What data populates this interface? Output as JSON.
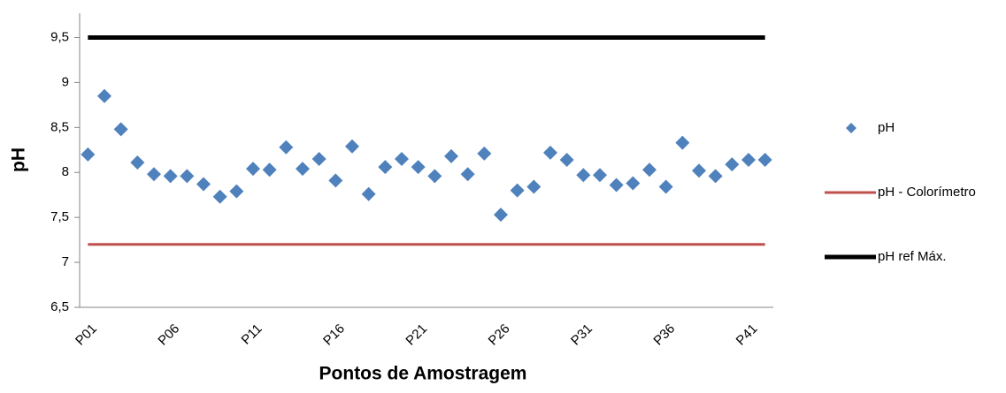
{
  "chart_data": {
    "type": "scatter-line",
    "x_label": "Pontos de Amostragem",
    "y_label": "pH",
    "categories": [
      "P01",
      null,
      null,
      null,
      null,
      "P06",
      null,
      null,
      null,
      null,
      "P11",
      null,
      null,
      null,
      null,
      "P16",
      null,
      null,
      null,
      null,
      "P21",
      null,
      null,
      null,
      null,
      "P26",
      null,
      null,
      null,
      null,
      "P31",
      null,
      null,
      null,
      null,
      "P36",
      null,
      null,
      null,
      null,
      "P41",
      null
    ],
    "series": [
      {
        "name": "pH",
        "color": "#4f81bd",
        "mark": "diamond",
        "values": [
          8.2,
          8.85,
          8.48,
          8.11,
          7.98,
          7.96,
          7.96,
          7.87,
          7.73,
          7.79,
          8.04,
          8.03,
          8.28,
          8.04,
          8.15,
          7.91,
          8.29,
          7.76,
          8.06,
          8.15,
          8.06,
          7.96,
          8.18,
          7.98,
          8.21,
          7.53,
          7.8,
          7.84,
          8.22,
          8.14,
          7.97,
          7.97,
          7.86,
          7.88,
          8.03,
          7.84,
          8.33,
          8.02,
          7.96,
          8.09,
          8.14,
          8.14
        ]
      },
      {
        "name": "pH - Colorímetro",
        "color": "#c0504d",
        "mark": "line",
        "width": 3,
        "values": [
          7.2,
          7.2,
          7.2,
          7.2,
          7.2,
          7.2,
          7.2,
          7.2,
          7.2,
          7.2,
          7.2,
          7.2,
          7.2,
          7.2,
          7.2,
          7.2,
          7.2,
          7.2,
          7.2,
          7.2,
          7.2,
          7.2,
          7.2,
          7.2,
          7.2,
          7.2,
          7.2,
          7.2,
          7.2,
          7.2,
          7.2,
          7.2,
          7.2,
          7.2,
          7.2,
          7.2,
          7.2,
          7.2,
          7.2,
          7.2,
          7.2,
          7.2
        ]
      },
      {
        "name": "pH ref Máx.",
        "color": "#000000",
        "mark": "line",
        "width": 5,
        "values": [
          9.5,
          9.5,
          9.5,
          9.5,
          9.5,
          9.5,
          9.5,
          9.5,
          9.5,
          9.5,
          9.5,
          9.5,
          9.5,
          9.5,
          9.5,
          9.5,
          9.5,
          9.5,
          9.5,
          9.5,
          9.5,
          9.5,
          9.5,
          9.5,
          9.5,
          9.5,
          9.5,
          9.5,
          9.5,
          9.5,
          9.5,
          9.5,
          9.5,
          9.5,
          9.5,
          9.5,
          9.5,
          9.5,
          9.5,
          9.5,
          9.5,
          9.5
        ]
      }
    ],
    "ylim": [
      6.5,
      9.77
    ],
    "yticks": [
      {
        "value": 6.5,
        "label": "6,5"
      },
      7,
      {
        "value": 7.5,
        "label": "7,5"
      },
      8,
      {
        "value": 8.5,
        "label": "8,5"
      },
      9,
      {
        "value": 9.5,
        "label": "9,5"
      }
    ],
    "grid": false,
    "legend": "right"
  }
}
